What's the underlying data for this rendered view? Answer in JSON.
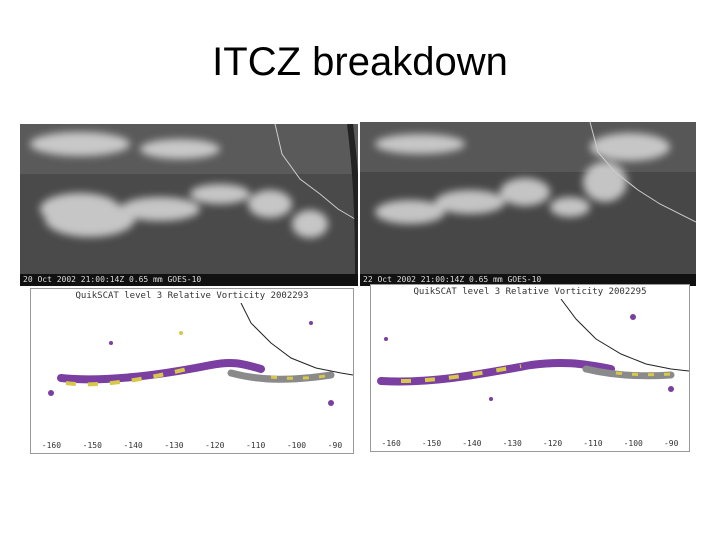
{
  "slide": {
    "title": "ITCZ breakdown"
  },
  "images": {
    "left": {
      "satellite_caption": "20 Oct 2002 21:00:14Z  0.65 mm  GOES-10",
      "vorticity_title": "QuikSCAT level 3 Relative Vorticity   2002293",
      "lon_ticks": [
        "-160",
        "-150",
        "-140",
        "-130",
        "-120",
        "-110",
        "-100",
        "-90"
      ]
    },
    "right": {
      "satellite_caption": "22 Oct 2002 21:00:14Z  0.65 mm  GOES-10",
      "vorticity_title": "QuikSCAT level 3 Relative Vorticity   2002295",
      "lon_ticks": [
        "-160",
        "-150",
        "-140",
        "-130",
        "-120",
        "-110",
        "-100",
        "-90"
      ]
    }
  },
  "colors": {
    "background": "#ffffff",
    "band_purple": "#7a3fa0",
    "band_yellow": "#d8c84a",
    "band_gray": "#8a8a8a"
  }
}
